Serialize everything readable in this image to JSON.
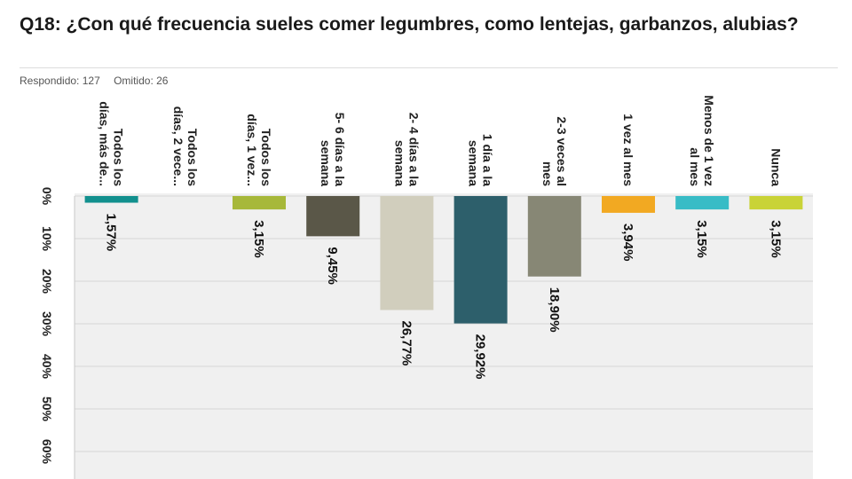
{
  "header": {
    "question": "Q18: ¿Con qué frecuencia sueles comer legumbres, como lentejas, garbanzos, alubias?",
    "answered": "Respondido: 127",
    "skipped": "Omitido: 26"
  },
  "chart_data": {
    "type": "bar",
    "orientation": "vertical",
    "title": "Q18: ¿Con qué frecuencia sueles comer legumbres, como lentejas, garbanzos, alubias?",
    "categories": [
      [
        "Todos los",
        "días, más de..."
      ],
      [
        "Todos los",
        "días, 2 vece..."
      ],
      [
        "Todos los",
        "días, 1 vez..."
      ],
      [
        "5- 6 días a la",
        "semana"
      ],
      [
        "2- 4 días a la",
        "semana"
      ],
      [
        "1 día a la",
        "semana"
      ],
      [
        "2-3 veces al",
        "mes"
      ],
      [
        "1 vez al mes"
      ],
      [
        "Menos de 1 vez",
        "al mes"
      ],
      [
        "Nunca"
      ]
    ],
    "values": [
      1.57,
      0,
      3.15,
      9.45,
      26.77,
      29.92,
      18.9,
      3.94,
      3.15,
      3.15
    ],
    "value_labels": [
      "1,57%",
      "",
      "3,15%",
      "9,45%",
      "26,77%",
      "29,92%",
      "18,90%",
      "3,94%",
      "3,15%",
      "3,15%"
    ],
    "colors": [
      "#12908e",
      "#e9e9e9",
      "#a7b83a",
      "#5a5748",
      "#d1cebd",
      "#2d5f6b",
      "#878775",
      "#f2a922",
      "#38bcc6",
      "#c9d337"
    ],
    "yticks": [
      "0%",
      "10%",
      "20%",
      "30%",
      "40%",
      "50%",
      "60%"
    ],
    "ylim": [
      0,
      60
    ],
    "grid": true,
    "legend": "none"
  }
}
